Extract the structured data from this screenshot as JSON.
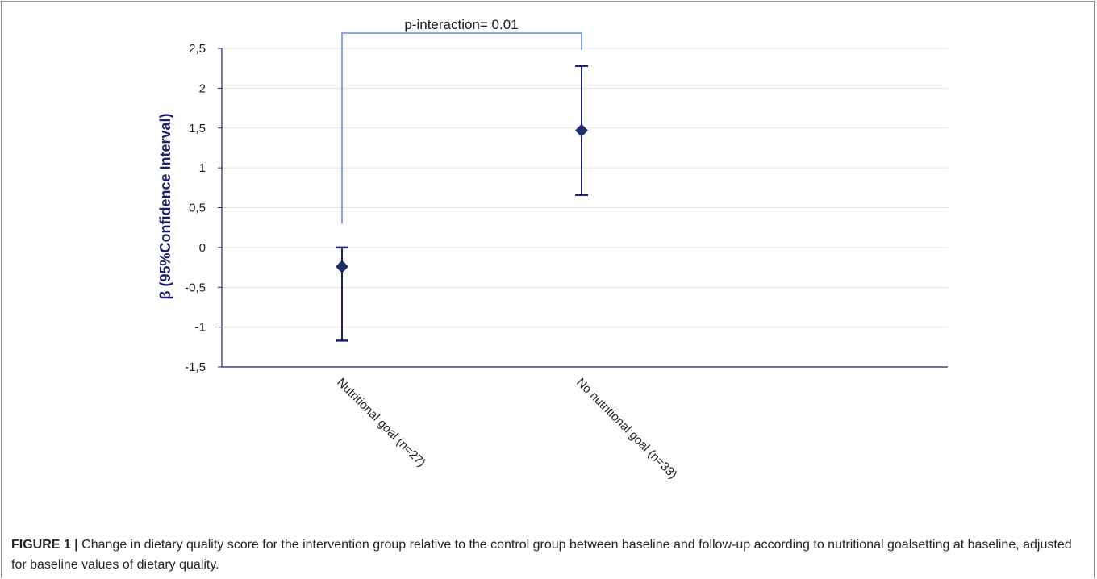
{
  "figure": {
    "caption_label": "FIGURE 1 |",
    "caption_text": "Change in dietary quality score for the intervention group relative to the control group between baseline and follow-up according to nutritional goalsetting at baseline, adjusted for baseline values of dietary quality."
  },
  "colors": {
    "marker": "#1f2f6b",
    "errorbar": "#1a1f6e",
    "bracket": "#3f7bd4",
    "axis": "#1a1f6e",
    "grid": "#e2e2e2"
  },
  "chart_data": {
    "type": "scatter",
    "title": "",
    "xlabel": "",
    "ylabel": "β (95%Confidence Interval)",
    "ylim": [
      -1.5,
      2.5
    ],
    "yticks": [
      -1.5,
      -1,
      -0.5,
      0,
      0.5,
      1,
      1.5,
      2,
      2.5
    ],
    "ytick_labels": [
      "-1,5",
      "-1",
      "-0,5",
      "0",
      "0,5",
      "1",
      "1,5",
      "2",
      "2,5"
    ],
    "grid": true,
    "categories": [
      "Nutritional goal (n=27)",
      "No nutritional goal (n=33)"
    ],
    "estimates": [
      -0.24,
      1.47
    ],
    "ci_lower": [
      -1.17,
      0.66
    ],
    "ci_upper": [
      0.0,
      2.28
    ],
    "annotation": {
      "text": "p-interaction= 0.01",
      "bracket_between": [
        0,
        1
      ]
    }
  }
}
